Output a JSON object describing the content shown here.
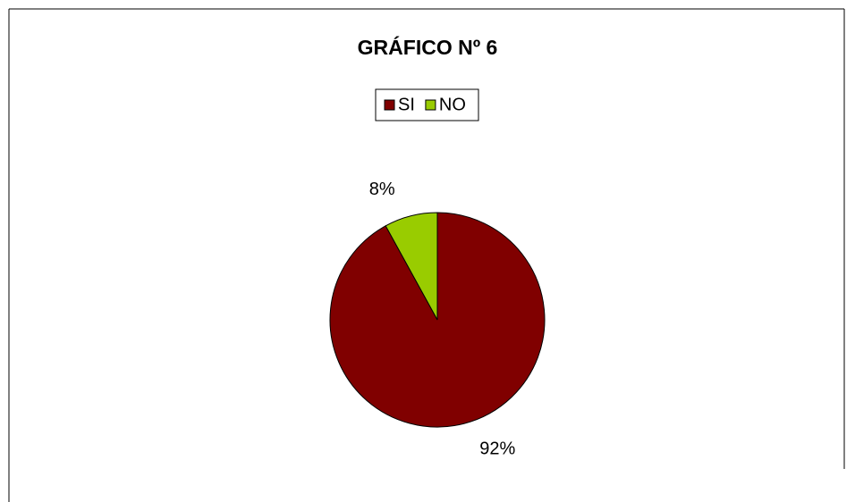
{
  "chart_data": {
    "type": "pie",
    "title": "GRÁFICO Nº 6",
    "categories": [
      "SI",
      "NO"
    ],
    "values": [
      92,
      8
    ],
    "value_labels": [
      "92%",
      "8%"
    ],
    "colors": [
      "#800000",
      "#99cc00"
    ],
    "legend": "top"
  }
}
